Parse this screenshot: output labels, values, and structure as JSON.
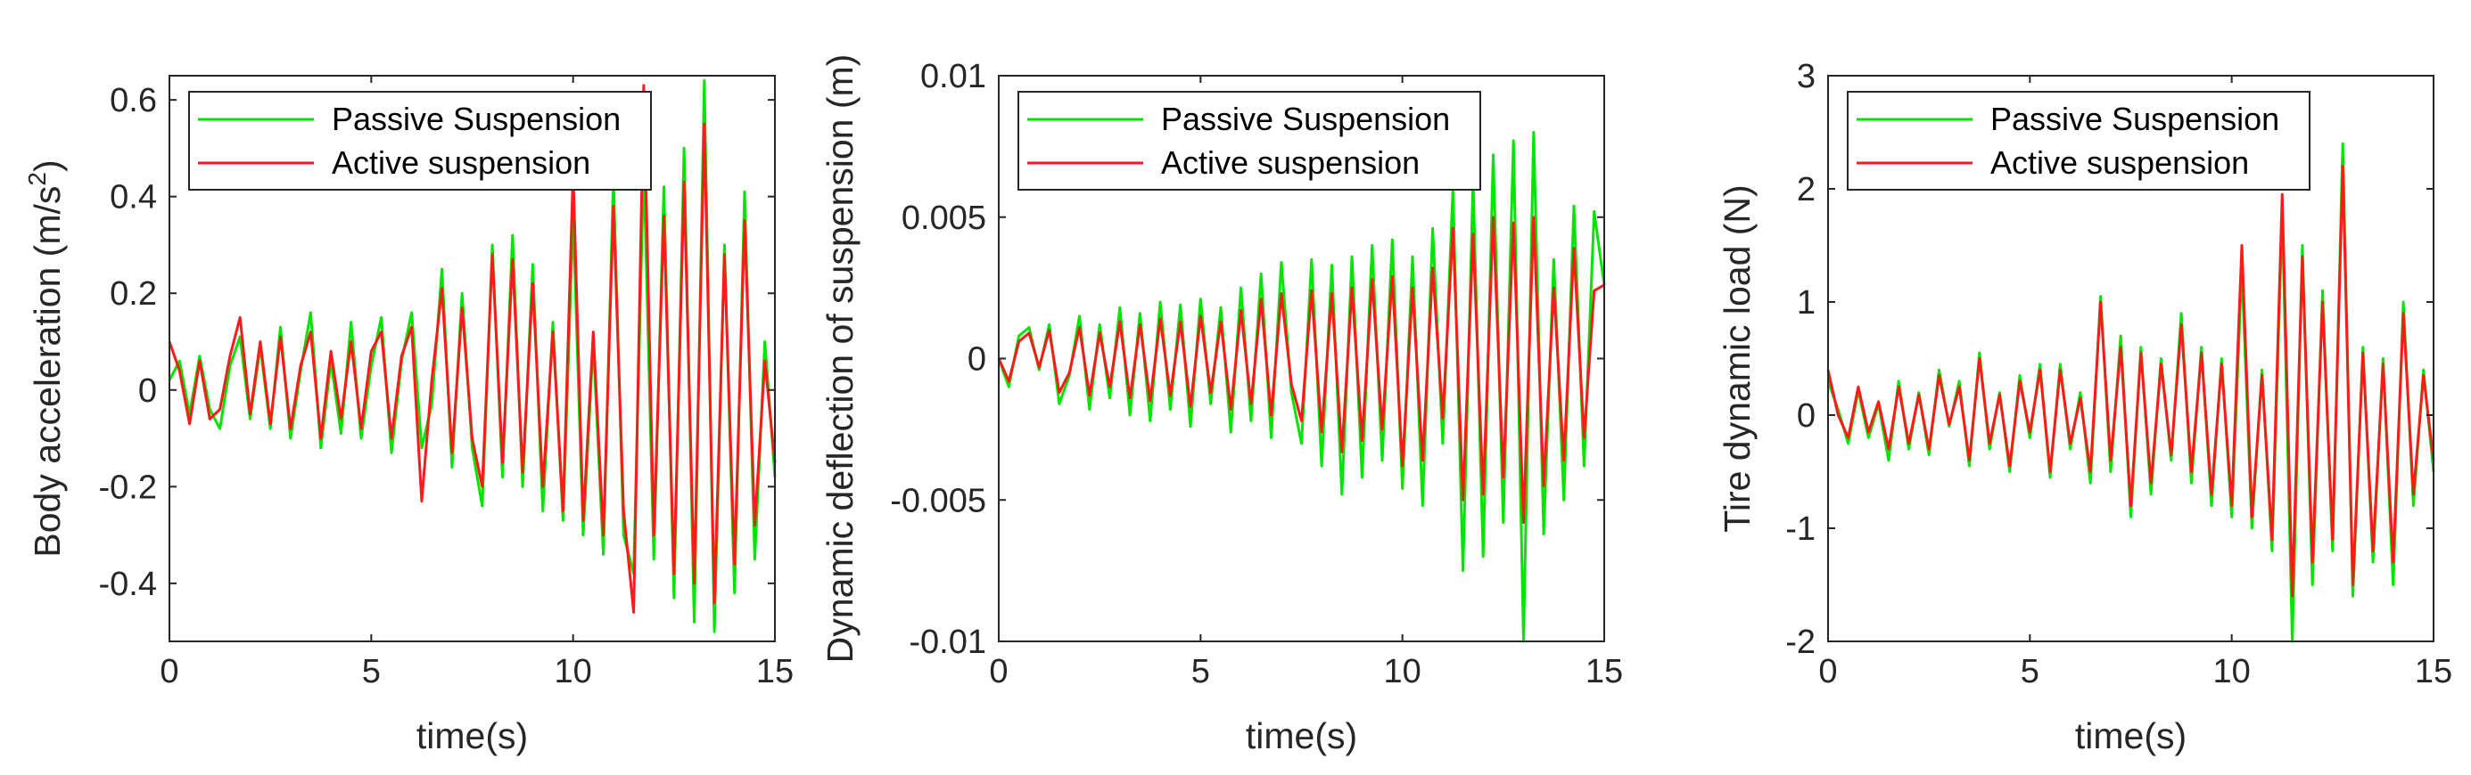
{
  "colors": {
    "passive": "#00e600",
    "active": "#ff1a1a",
    "axis": "#262626",
    "background": "#ffffff"
  },
  "chart_data": [
    {
      "type": "line",
      "xlabel": "time(s)",
      "ylabel": "Body acceleration (m/s",
      "ylabel_sup": "2",
      "ylabel_tail": ")",
      "xlim": [
        0,
        15
      ],
      "ylim": [
        -0.52,
        0.65
      ],
      "xticks": [
        0,
        5,
        10,
        15
      ],
      "xtick_labels": [
        "0",
        "5",
        "10",
        "15"
      ],
      "yticks": [
        -0.4,
        -0.2,
        0,
        0.2,
        0.4,
        0.6
      ],
      "ytick_labels": [
        "-0.4",
        "-0.2",
        "0",
        "0.2",
        "0.4",
        "0.6"
      ],
      "legend_position": "top-left",
      "series": [
        {
          "name": "Passive Suspension",
          "color": "#00e600",
          "x": [
            0,
            0.25,
            0.5,
            0.75,
            1,
            1.25,
            1.5,
            1.75,
            2,
            2.25,
            2.5,
            2.75,
            3,
            3.25,
            3.5,
            3.75,
            4,
            4.25,
            4.5,
            4.75,
            5,
            5.25,
            5.5,
            5.75,
            6,
            6.25,
            6.5,
            6.75,
            7,
            7.25,
            7.5,
            7.75,
            8,
            8.25,
            8.5,
            8.75,
            9,
            9.25,
            9.5,
            9.75,
            10,
            10.25,
            10.5,
            10.75,
            11,
            11.25,
            11.5,
            11.75,
            12,
            12.25,
            12.5,
            12.75,
            13,
            13.25,
            13.5,
            13.75,
            14,
            14.25,
            14.5,
            14.75,
            15
          ],
          "y": [
            0.02,
            0.06,
            -0.05,
            0.07,
            -0.04,
            -0.08,
            0.05,
            0.11,
            -0.06,
            0.09,
            -0.08,
            0.13,
            -0.1,
            0.04,
            0.16,
            -0.12,
            0.06,
            -0.09,
            0.14,
            -0.1,
            0.05,
            0.15,
            -0.13,
            0.06,
            0.16,
            -0.12,
            -0.03,
            0.25,
            -0.16,
            0.2,
            -0.12,
            -0.24,
            0.3,
            -0.18,
            0.32,
            -0.2,
            0.26,
            -0.25,
            0.14,
            -0.27,
            0.36,
            -0.3,
            0.1,
            -0.34,
            0.44,
            -0.3,
            -0.38,
            0.47,
            -0.35,
            0.42,
            -0.43,
            0.5,
            -0.48,
            0.64,
            -0.5,
            0.3,
            -0.42,
            0.41,
            -0.35,
            0.1,
            -0.18
          ]
        },
        {
          "name": "Active suspension",
          "color": "#ff1a1a",
          "x": [
            0,
            0.25,
            0.5,
            0.75,
            1,
            1.25,
            1.5,
            1.75,
            2,
            2.25,
            2.5,
            2.75,
            3,
            3.25,
            3.5,
            3.75,
            4,
            4.25,
            4.5,
            4.75,
            5,
            5.25,
            5.5,
            5.75,
            6,
            6.25,
            6.5,
            6.75,
            7,
            7.25,
            7.5,
            7.75,
            8,
            8.25,
            8.5,
            8.75,
            9,
            9.25,
            9.5,
            9.75,
            10,
            10.25,
            10.5,
            10.75,
            11,
            11.25,
            11.5,
            11.75,
            12,
            12.25,
            12.5,
            12.75,
            13,
            13.25,
            13.5,
            13.75,
            14,
            14.25,
            14.5,
            14.75,
            15
          ],
          "y": [
            0.1,
            0.04,
            -0.07,
            0.06,
            -0.06,
            -0.04,
            0.07,
            0.15,
            -0.05,
            0.1,
            -0.07,
            0.11,
            -0.08,
            0.05,
            0.12,
            -0.1,
            0.08,
            -0.06,
            0.1,
            -0.08,
            0.08,
            0.12,
            -0.1,
            0.07,
            0.13,
            -0.23,
            0.02,
            0.21,
            -0.13,
            0.17,
            -0.1,
            -0.2,
            0.28,
            -0.15,
            0.27,
            -0.17,
            0.22,
            -0.2,
            0.12,
            -0.25,
            0.45,
            -0.27,
            0.12,
            -0.3,
            0.38,
            -0.25,
            -0.46,
            0.63,
            -0.3,
            0.36,
            -0.38,
            0.43,
            -0.4,
            0.55,
            -0.44,
            0.28,
            -0.36,
            0.35,
            -0.28,
            0.06,
            -0.15
          ]
        }
      ]
    },
    {
      "type": "line",
      "xlabel": "time(s)",
      "ylabel": "Dynamic deflection of suspension (m)",
      "xlim": [
        0,
        15
      ],
      "ylim": [
        -0.01,
        0.01
      ],
      "xticks": [
        0,
        5,
        10,
        15
      ],
      "xtick_labels": [
        "0",
        "5",
        "10",
        "15"
      ],
      "yticks": [
        -0.01,
        -0.005,
        0,
        0.005,
        0.01
      ],
      "ytick_labels": [
        "-0.01",
        "-0.005",
        "0",
        "0.005",
        "0.01"
      ],
      "legend_position": "top-left",
      "series": [
        {
          "name": "Passive Suspension",
          "color": "#00e600",
          "x": [
            0,
            0.25,
            0.5,
            0.75,
            1,
            1.25,
            1.5,
            1.75,
            2,
            2.25,
            2.5,
            2.75,
            3,
            3.25,
            3.5,
            3.75,
            4,
            4.25,
            4.5,
            4.75,
            5,
            5.25,
            5.5,
            5.75,
            6,
            6.25,
            6.5,
            6.75,
            7,
            7.25,
            7.5,
            7.75,
            8,
            8.25,
            8.5,
            8.75,
            9,
            9.25,
            9.5,
            9.75,
            10,
            10.25,
            10.5,
            10.75,
            11,
            11.25,
            11.5,
            11.75,
            12,
            12.25,
            12.5,
            12.75,
            13,
            13.25,
            13.5,
            13.75,
            14,
            14.25,
            14.5,
            14.75,
            15
          ],
          "y": [
            0,
            -0.001,
            0.0008,
            0.0011,
            -0.0004,
            0.0012,
            -0.0016,
            -0.0006,
            0.0015,
            -0.0018,
            0.0012,
            -0.0014,
            0.0018,
            -0.002,
            0.0016,
            -0.0022,
            0.002,
            -0.0018,
            0.0019,
            -0.0024,
            0.0021,
            -0.0016,
            0.0018,
            -0.0026,
            0.0025,
            -0.0022,
            0.003,
            -0.0028,
            0.0034,
            -0.0012,
            -0.003,
            0.0035,
            -0.0038,
            0.0033,
            -0.0048,
            0.0036,
            -0.0042,
            0.004,
            -0.0036,
            0.0042,
            -0.0046,
            0.0036,
            -0.0052,
            0.0046,
            -0.003,
            0.006,
            -0.0075,
            0.0063,
            -0.007,
            0.0072,
            -0.0058,
            0.0077,
            -0.01,
            0.008,
            -0.0062,
            0.0035,
            -0.005,
            0.0054,
            -0.0038,
            0.0052,
            0.0026
          ]
        },
        {
          "name": "Active suspension",
          "color": "#ff1a1a",
          "x": [
            0,
            0.25,
            0.5,
            0.75,
            1,
            1.25,
            1.5,
            1.75,
            2,
            2.25,
            2.5,
            2.75,
            3,
            3.25,
            3.5,
            3.75,
            4,
            4.25,
            4.5,
            4.75,
            5,
            5.25,
            5.5,
            5.75,
            6,
            6.25,
            6.5,
            6.75,
            7,
            7.25,
            7.5,
            7.75,
            8,
            8.25,
            8.5,
            8.75,
            9,
            9.25,
            9.5,
            9.75,
            10,
            10.25,
            10.5,
            10.75,
            11,
            11.25,
            11.5,
            11.75,
            12,
            12.25,
            12.5,
            12.75,
            13,
            13.25,
            13.5,
            13.75,
            14,
            14.25,
            14.5,
            14.75,
            15
          ],
          "y": [
            0,
            -0.0008,
            0.0006,
            0.0009,
            -0.0003,
            0.001,
            -0.0012,
            -0.0005,
            0.0011,
            -0.0013,
            0.0009,
            -0.001,
            0.0013,
            -0.0014,
            0.0012,
            -0.0015,
            0.0014,
            -0.0013,
            0.0013,
            -0.0017,
            0.0015,
            -0.0012,
            0.0013,
            -0.0018,
            0.0017,
            -0.0016,
            0.0021,
            -0.002,
            0.0023,
            -0.0009,
            -0.0022,
            0.0024,
            -0.0026,
            0.0023,
            -0.0033,
            0.0025,
            -0.0029,
            0.0028,
            -0.0025,
            0.0029,
            -0.0038,
            0.0025,
            -0.0036,
            0.0032,
            -0.0021,
            0.0046,
            -0.005,
            0.0044,
            -0.0048,
            0.005,
            -0.0042,
            0.0048,
            -0.0058,
            0.005,
            -0.0045,
            0.0025,
            -0.0036,
            0.0039,
            -0.0028,
            0.0024,
            0.0026
          ]
        }
      ]
    },
    {
      "type": "line",
      "xlabel": "time(s)",
      "ylabel": "Tire dynamic load (N)",
      "xlim": [
        0,
        15
      ],
      "ylim": [
        -2,
        3
      ],
      "xticks": [
        0,
        5,
        10,
        15
      ],
      "xtick_labels": [
        "0",
        "5",
        "10",
        "15"
      ],
      "yticks": [
        -2,
        -1,
        0,
        1,
        2,
        3
      ],
      "ytick_labels": [
        "-2",
        "-1",
        "0",
        "1",
        "2",
        "3"
      ],
      "legend_position": "top-left",
      "series": [
        {
          "name": "Passive Suspension",
          "color": "#00e600",
          "x": [
            0,
            0.25,
            0.5,
            0.75,
            1,
            1.25,
            1.5,
            1.75,
            2,
            2.25,
            2.5,
            2.75,
            3,
            3.25,
            3.5,
            3.75,
            4,
            4.25,
            4.5,
            4.75,
            5,
            5.25,
            5.5,
            5.75,
            6,
            6.25,
            6.5,
            6.75,
            7,
            7.25,
            7.5,
            7.75,
            8,
            8.25,
            8.5,
            8.75,
            9,
            9.25,
            9.5,
            9.75,
            10,
            10.25,
            10.5,
            10.75,
            11,
            11.25,
            11.5,
            11.75,
            12,
            12.25,
            12.5,
            12.75,
            13,
            13.25,
            13.5,
            13.75,
            14,
            14.25,
            14.5,
            14.75,
            15
          ],
          "y": [
            0.3,
            0.05,
            -0.25,
            0.22,
            -0.2,
            0.1,
            -0.4,
            0.3,
            -0.3,
            0.2,
            -0.35,
            0.4,
            -0.1,
            0.3,
            -0.45,
            0.55,
            -0.3,
            0.2,
            -0.5,
            0.35,
            -0.2,
            0.45,
            -0.55,
            0.45,
            -0.3,
            0.2,
            -0.6,
            1.05,
            -0.5,
            0.7,
            -0.9,
            0.6,
            -0.7,
            0.5,
            -0.4,
            0.9,
            -0.6,
            0.6,
            -0.8,
            0.5,
            -0.9,
            1.3,
            -1.0,
            0.4,
            -1.2,
            1.8,
            -2.0,
            1.5,
            -1.5,
            1.1,
            -1.2,
            2.4,
            -1.6,
            0.6,
            -1.3,
            0.5,
            -1.5,
            1.0,
            -0.8,
            0.4,
            -0.5
          ]
        },
        {
          "name": "Active suspension",
          "color": "#ff1a1a",
          "x": [
            0,
            0.25,
            0.5,
            0.75,
            1,
            1.25,
            1.5,
            1.75,
            2,
            2.25,
            2.5,
            2.75,
            3,
            3.25,
            3.5,
            3.75,
            4,
            4.25,
            4.5,
            4.75,
            5,
            5.25,
            5.5,
            5.75,
            6,
            6.25,
            6.5,
            6.75,
            7,
            7.25,
            7.5,
            7.75,
            8,
            8.25,
            8.5,
            8.75,
            9,
            9.25,
            9.5,
            9.75,
            10,
            10.25,
            10.5,
            10.75,
            11,
            11.25,
            11.5,
            11.75,
            12,
            12.25,
            12.5,
            12.75,
            13,
            13.25,
            13.5,
            13.75,
            14,
            14.25,
            14.5,
            14.75,
            15
          ],
          "y": [
            0.4,
            0.0,
            -0.2,
            0.25,
            -0.15,
            0.12,
            -0.3,
            0.25,
            -0.25,
            0.18,
            -0.3,
            0.35,
            -0.08,
            0.25,
            -0.4,
            0.5,
            -0.25,
            0.18,
            -0.45,
            0.3,
            -0.15,
            0.4,
            -0.5,
            0.4,
            -0.25,
            0.15,
            -0.5,
            1.0,
            -0.4,
            0.6,
            -0.8,
            0.55,
            -0.6,
            0.45,
            -0.35,
            0.8,
            -0.5,
            0.55,
            -0.7,
            0.45,
            -0.8,
            1.5,
            -0.9,
            0.35,
            -1.1,
            1.95,
            -1.6,
            1.4,
            -1.3,
            1.0,
            -1.1,
            2.2,
            -1.5,
            0.55,
            -1.2,
            0.45,
            -1.3,
            0.9,
            -0.7,
            0.35,
            -0.4
          ]
        }
      ]
    }
  ]
}
